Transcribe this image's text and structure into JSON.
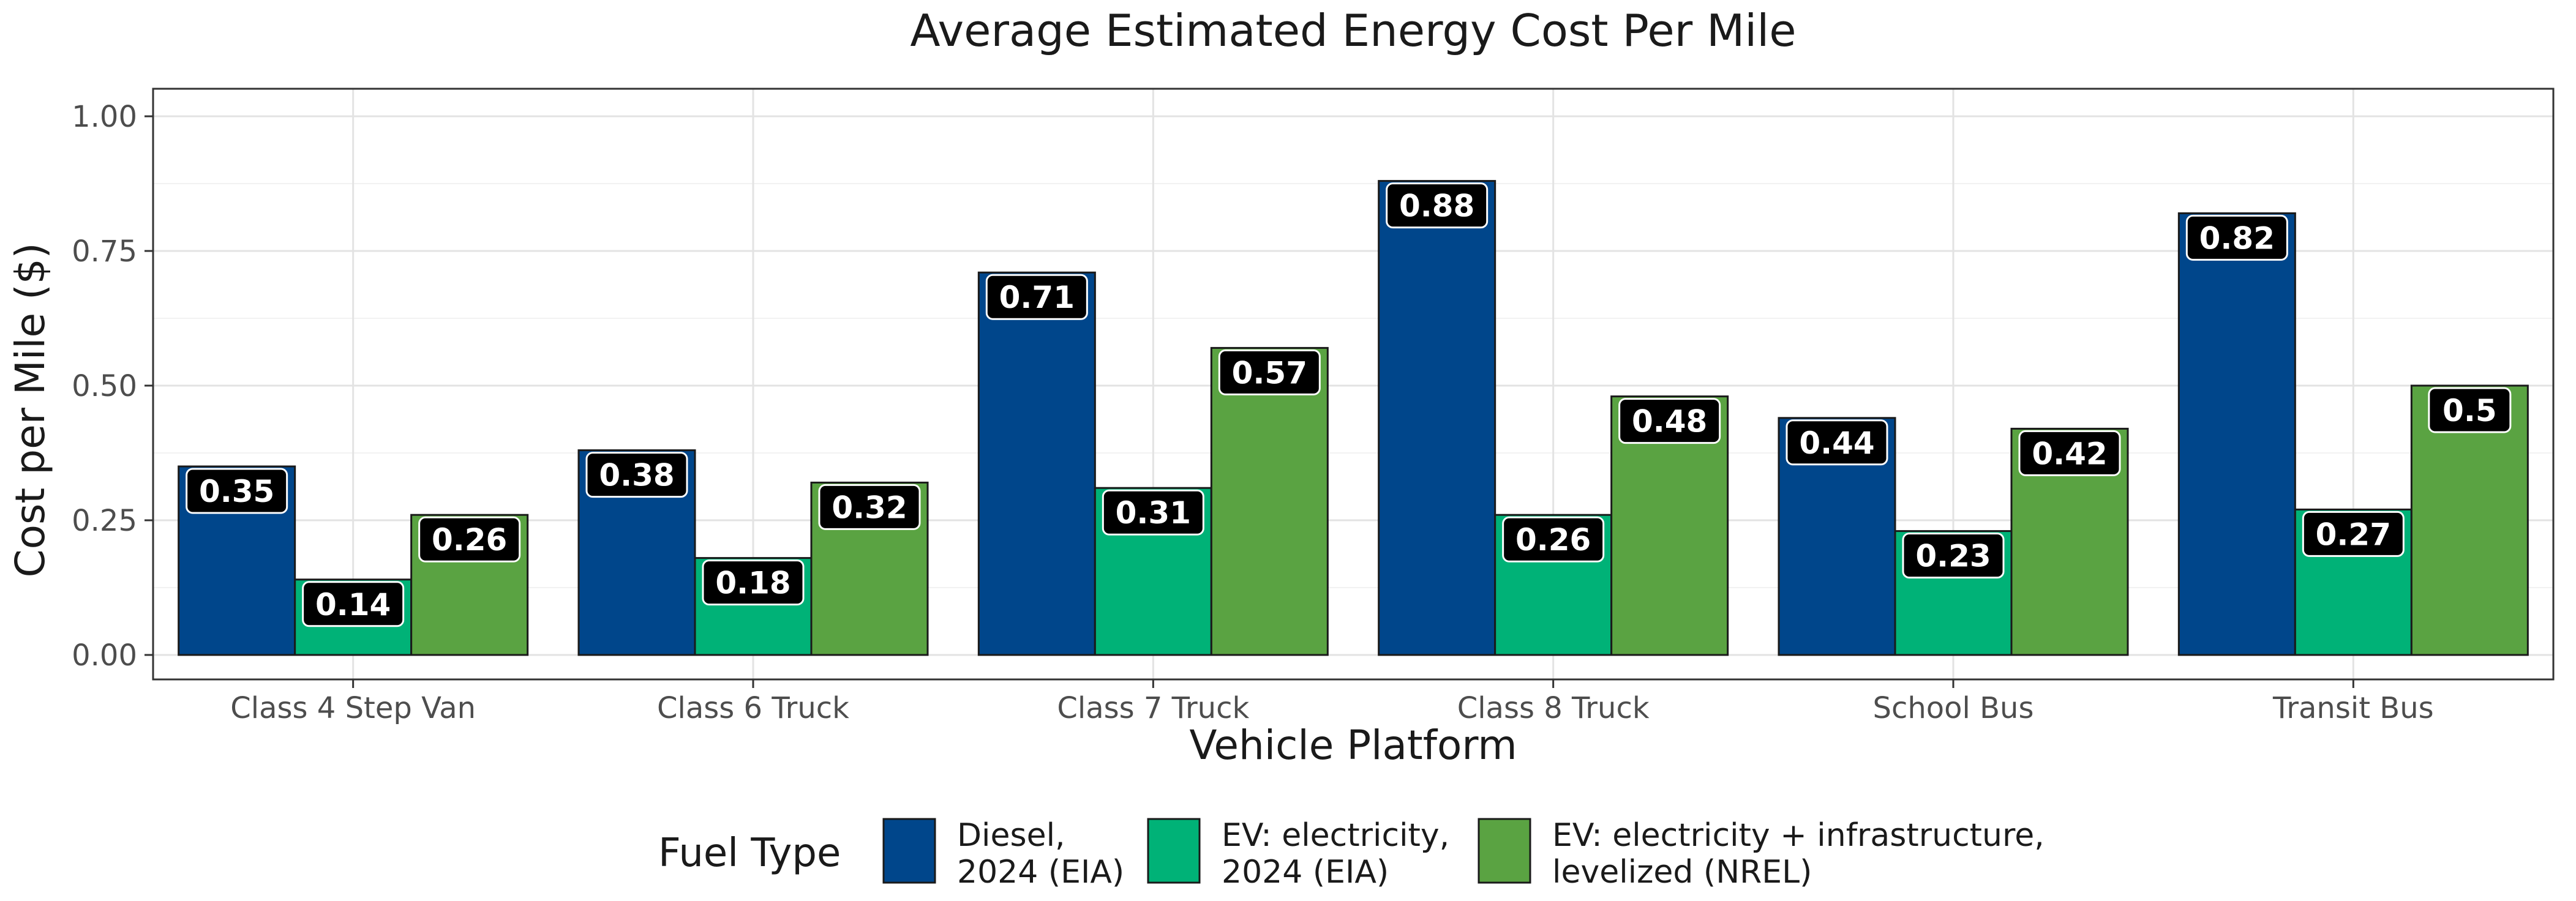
{
  "chart_data": {
    "type": "bar",
    "title": "Average Estimated Energy Cost Per Mile",
    "xlabel": "Vehicle Platform",
    "ylabel": "Cost per Mile ($)",
    "ylim": [
      0,
      1.05
    ],
    "yticks": [
      "0.00",
      "0.25",
      "0.50",
      "0.75",
      "1.00"
    ],
    "ytick_values": [
      0,
      0.25,
      0.5,
      0.75,
      1.0
    ],
    "grid": true,
    "legend_position": "bottom",
    "legend_title": "Fuel Type",
    "categories": [
      "Class 4 Step Van",
      "Class 6 Truck",
      "Class 7 Truck",
      "Class 8 Truck",
      "School Bus",
      "Transit Bus"
    ],
    "series": [
      {
        "name": "Diesel, 2024 (EIA)",
        "legend_lines": [
          "Diesel,",
          "2024 (EIA)"
        ],
        "color": "#00468b",
        "values": [
          0.35,
          0.38,
          0.71,
          0.88,
          0.44,
          0.82
        ],
        "labels": [
          "0.35",
          "0.38",
          "0.71",
          "0.88",
          "0.44",
          "0.82"
        ]
      },
      {
        "name": "EV: electricity, 2024 (EIA)",
        "legend_lines": [
          "EV: electricity,",
          "2024 (EIA)"
        ],
        "color": "#00b277",
        "values": [
          0.14,
          0.18,
          0.31,
          0.26,
          0.23,
          0.27
        ],
        "labels": [
          "0.14",
          "0.18",
          "0.31",
          "0.26",
          "0.23",
          "0.27"
        ]
      },
      {
        "name": "EV: electricity + infrastructure, levelized (NREL)",
        "legend_lines": [
          "EV: electricity + infrastructure,",
          "levelized (NREL)"
        ],
        "color": "#5aa342",
        "values": [
          0.26,
          0.32,
          0.57,
          0.48,
          0.42,
          0.5
        ],
        "labels": [
          "0.26",
          "0.32",
          "0.57",
          "0.48",
          "0.42",
          "0.5"
        ]
      }
    ]
  }
}
